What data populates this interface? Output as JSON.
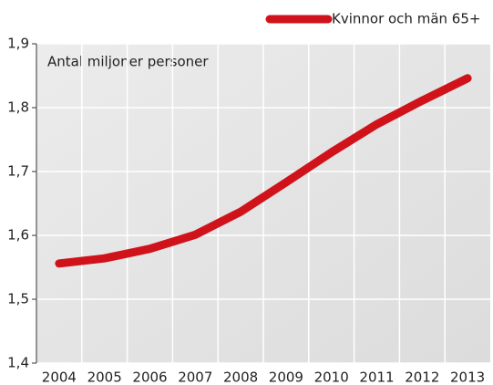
{
  "chart_data": {
    "type": "line",
    "annotation": "Antal miljoner personer",
    "categories": [
      "2004",
      "2005",
      "2006",
      "2007",
      "2008",
      "2009",
      "2010",
      "2011",
      "2012",
      "2013"
    ],
    "series": [
      {
        "name": "Kvinnor och män 65+",
        "color": "#d0121b",
        "values": [
          1.556,
          1.564,
          1.579,
          1.601,
          1.637,
          1.683,
          1.73,
          1.774,
          1.811,
          1.846
        ]
      }
    ],
    "ylim": [
      1.4,
      1.9
    ],
    "yticks": [
      {
        "value": 1.4,
        "label": "1,4"
      },
      {
        "value": 1.5,
        "label": "1,5"
      },
      {
        "value": 1.6,
        "label": "1,6"
      },
      {
        "value": 1.7,
        "label": "1,7"
      },
      {
        "value": 1.8,
        "label": "1,8"
      },
      {
        "value": 1.9,
        "label": "1,9"
      }
    ],
    "grid": true,
    "legend": "top-right"
  }
}
